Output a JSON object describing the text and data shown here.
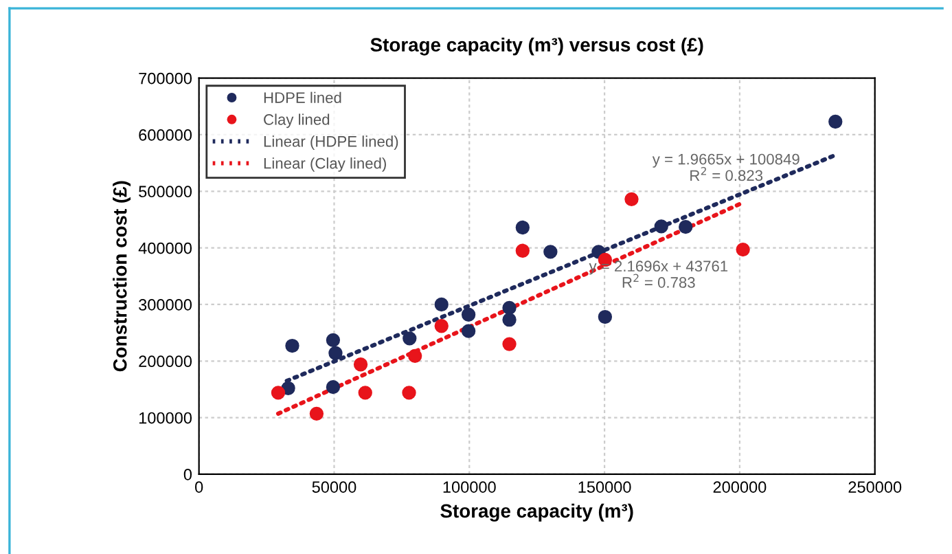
{
  "chart_data": {
    "type": "scatter",
    "title": "Storage capacity (m³) versus cost (£)",
    "xlabel": "Storage capacity (m³)",
    "ylabel": "Construction cost (£)",
    "series": [
      {
        "name": "HDPE lined",
        "type": "scatter",
        "color": "#1f2a5c",
        "marker": "circle",
        "x": [
          33000,
          34500,
          49600,
          50500,
          49600,
          77900,
          89700,
          99700,
          99700,
          114800,
          114800,
          119700,
          130000,
          147800,
          150200,
          171000,
          180000,
          235400
        ],
        "values": [
          152000,
          227000,
          237000,
          214000,
          154000,
          240000,
          300000,
          282000,
          253000,
          294000,
          273000,
          436000,
          393000,
          393000,
          278000,
          438000,
          437000,
          623000
        ]
      },
      {
        "name": "Clay lined",
        "type": "scatter",
        "color": "#e8141b",
        "marker": "circle",
        "x": [
          29300,
          43500,
          59800,
          61500,
          77700,
          79900,
          89700,
          114800,
          119700,
          150200,
          160000,
          201200
        ],
        "values": [
          144000,
          107000,
          194000,
          144000,
          144000,
          209000,
          262000,
          230000,
          395000,
          379000,
          486000,
          397000
        ]
      },
      {
        "name": "Linear (HDPE lined)",
        "type": "line",
        "color": "#1f2a5c",
        "line_style": "dotted",
        "marker": "none",
        "x": [
          32500,
          235400
        ],
        "values": [
          165000,
          564000
        ]
      },
      {
        "name": "Linear (Clay lined)",
        "type": "line",
        "color": "#e8141b",
        "line_style": "dotted",
        "marker": "none",
        "x": [
          29300,
          201200
        ],
        "values": [
          107000,
          480000
        ]
      }
    ],
    "xlim": [
      0,
      250000
    ],
    "xticks": [
      0,
      50000,
      100000,
      150000,
      200000,
      250000
    ],
    "ylim": [
      0,
      700000
    ],
    "yticks": [
      0,
      100000,
      200000,
      300000,
      400000,
      500000,
      600000,
      700000
    ],
    "grid": true,
    "legend": "top left",
    "annotations": [
      "y = 1.9665x + 100849\nR$^{2}$ = 0.823",
      "y = 2.1696x + 43761\nR$^{2}$ = 0.783"
    ]
  }
}
